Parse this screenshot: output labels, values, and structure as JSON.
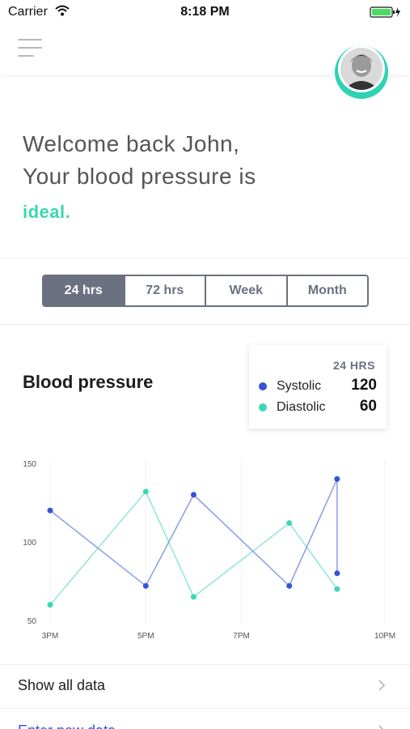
{
  "status_bar": {
    "carrier": "Carrier",
    "time": "8:18 PM",
    "battery_color": "#4cd964"
  },
  "nav": {
    "menu_icon": "hamburger-icon",
    "avatar_ring_color": "#2fd3b3"
  },
  "welcome": {
    "line1": "Welcome back John,",
    "line2": "Your blood pressure is",
    "status": "ideal.",
    "status_color": "#3cd6ae"
  },
  "range_tabs": [
    {
      "label": "24 hrs",
      "active": true
    },
    {
      "label": "72 hrs",
      "active": false
    },
    {
      "label": "Week",
      "active": false
    },
    {
      "label": "Month",
      "active": false
    }
  ],
  "section": {
    "title": "Blood pressure"
  },
  "legend": {
    "period": "24 HRS",
    "items": [
      {
        "name": "Systolic",
        "value": "120",
        "color": "#3553d6"
      },
      {
        "name": "Diastolic",
        "value": "60",
        "color": "#3dd6b8"
      }
    ]
  },
  "chart_data": {
    "type": "line",
    "y_ticks": [
      "150",
      "100",
      "50"
    ],
    "x_ticks": [
      "3PM",
      "5PM",
      "7PM",
      "10PM"
    ],
    "ylim": [
      50,
      150
    ],
    "xlim": [
      15,
      22
    ],
    "grid": true,
    "series": [
      {
        "name": "Systolic",
        "color": "#3553d6",
        "x": [
          15,
          17,
          18,
          20,
          21,
          21
        ],
        "y": [
          120,
          72,
          130,
          72,
          140,
          80
        ]
      },
      {
        "name": "Diastolic",
        "color": "#3dd6b8",
        "x": [
          15,
          17,
          18,
          20,
          21
        ],
        "y": [
          60,
          132,
          65,
          112,
          70
        ]
      }
    ]
  },
  "actions": {
    "show_all": "Show all data",
    "enter_new": "Enter new data"
  }
}
